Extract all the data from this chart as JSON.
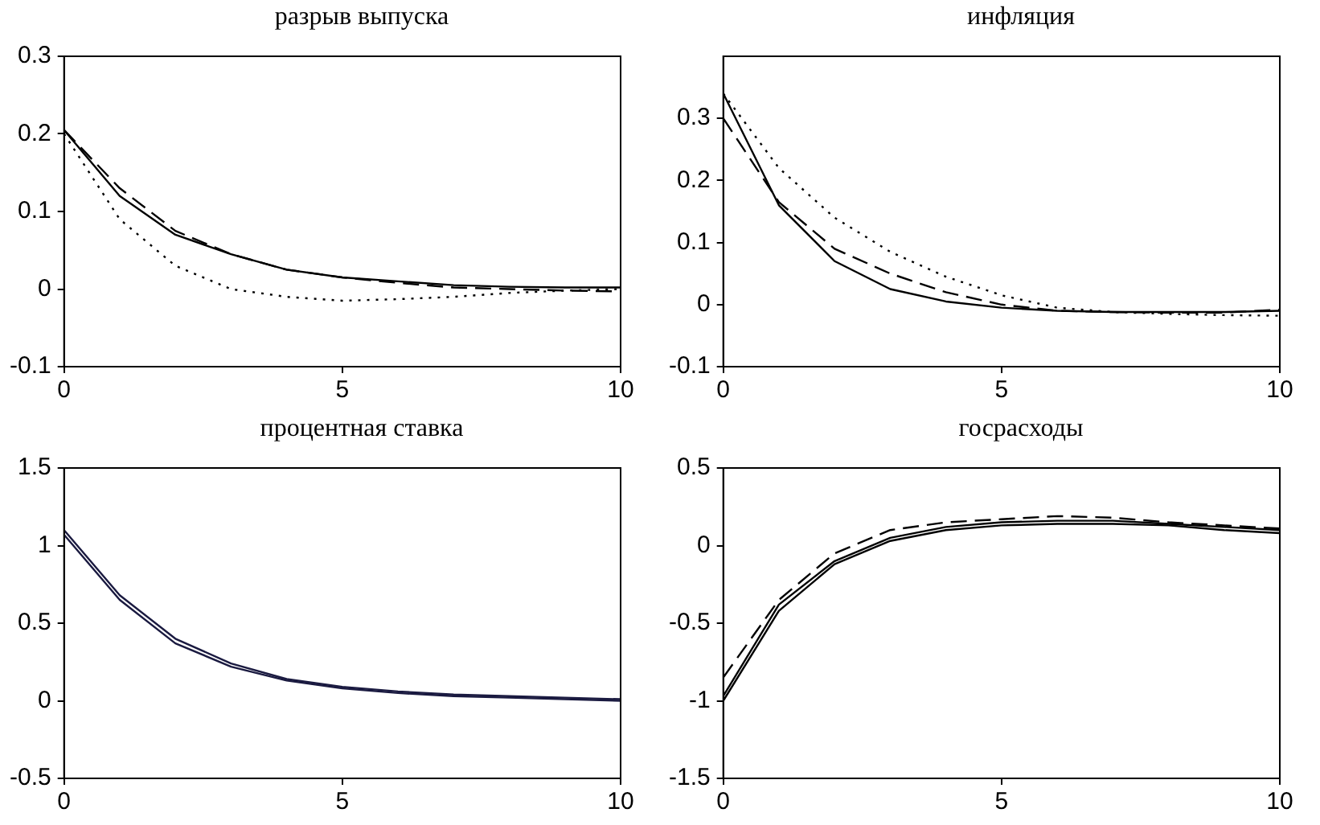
{
  "chart_data": [
    {
      "type": "line",
      "title": "разрыв выпуска",
      "x": [
        0,
        1,
        2,
        3,
        4,
        5,
        6,
        7,
        8,
        9,
        10
      ],
      "xlim": [
        0,
        10
      ],
      "xticks": [
        0,
        5,
        10
      ],
      "ylim": [
        -0.1,
        0.3
      ],
      "yticks": [
        -0.1,
        0,
        0.1,
        0.2,
        0.3
      ],
      "grid": false,
      "legend": false,
      "marker": "none",
      "series": [
        {
          "color": "#000000",
          "line_style": "solid",
          "values": [
            0.205,
            0.12,
            0.07,
            0.045,
            0.025,
            0.015,
            0.01,
            0.005,
            0.003,
            0.002,
            0.002
          ]
        },
        {
          "color": "#000000",
          "line_style": "dashed",
          "values": [
            0.205,
            0.13,
            0.075,
            0.045,
            0.025,
            0.015,
            0.008,
            0.002,
            0,
            -0.002,
            -0.003
          ]
        },
        {
          "color": "#000000",
          "line_style": "dotted",
          "values": [
            0.2,
            0.09,
            0.03,
            0,
            -0.01,
            -0.015,
            -0.013,
            -0.01,
            -0.005,
            -0.002,
            0
          ]
        }
      ]
    },
    {
      "type": "line",
      "title": "инфляция",
      "x": [
        0,
        1,
        2,
        3,
        4,
        5,
        6,
        7,
        8,
        9,
        10
      ],
      "xlim": [
        0,
        10
      ],
      "xticks": [
        0,
        5,
        10
      ],
      "ylim": [
        -0.1,
        0.4
      ],
      "yticks": [
        -0.1,
        0,
        0.1,
        0.2,
        0.3
      ],
      "grid": false,
      "legend": false,
      "marker": "none",
      "series": [
        {
          "color": "#000000",
          "line_style": "solid",
          "values": [
            0.34,
            0.16,
            0.07,
            0.025,
            0.005,
            -0.005,
            -0.01,
            -0.012,
            -0.012,
            -0.012,
            -0.01
          ]
        },
        {
          "color": "#000000",
          "line_style": "dashed",
          "values": [
            0.3,
            0.165,
            0.09,
            0.05,
            0.02,
            0,
            -0.01,
            -0.012,
            -0.013,
            -0.013,
            -0.008
          ]
        },
        {
          "color": "#000000",
          "line_style": "dotted",
          "values": [
            0.34,
            0.22,
            0.14,
            0.085,
            0.045,
            0.015,
            -0.005,
            -0.012,
            -0.015,
            -0.017,
            -0.018
          ]
        }
      ]
    },
    {
      "type": "line",
      "title": "процентная ставка",
      "x": [
        0,
        1,
        2,
        3,
        4,
        5,
        6,
        7,
        8,
        9,
        10
      ],
      "xlim": [
        0,
        10
      ],
      "xticks": [
        0,
        5,
        10
      ],
      "ylim": [
        -0.5,
        1.5
      ],
      "yticks": [
        -0.5,
        0,
        0.5,
        1,
        1.5
      ],
      "grid": false,
      "legend": false,
      "marker": "none",
      "series": [
        {
          "color": "#1a1a40",
          "line_style": "solid",
          "values": [
            1.1,
            0.68,
            0.4,
            0.24,
            0.14,
            0.09,
            0.06,
            0.04,
            0.03,
            0.02,
            0.01
          ]
        },
        {
          "color": "#1a1a40",
          "line_style": "solid",
          "values": [
            1.07,
            0.65,
            0.37,
            0.22,
            0.13,
            0.08,
            0.05,
            0.03,
            0.02,
            0.01,
            0
          ]
        }
      ]
    },
    {
      "type": "line",
      "title": "госрасходы",
      "x": [
        0,
        1,
        2,
        3,
        4,
        5,
        6,
        7,
        8,
        9,
        10
      ],
      "xlim": [
        0,
        10
      ],
      "xticks": [
        0,
        5,
        10
      ],
      "ylim": [
        -1.5,
        0.5
      ],
      "yticks": [
        -1.5,
        -1,
        -0.5,
        0,
        0.5
      ],
      "grid": false,
      "legend": false,
      "marker": "none",
      "series": [
        {
          "color": "#000000",
          "line_style": "solid",
          "values": [
            -1,
            -0.42,
            -0.12,
            0.03,
            0.1,
            0.13,
            0.14,
            0.14,
            0.13,
            0.1,
            0.08
          ]
        },
        {
          "color": "#000000",
          "line_style": "dashed",
          "values": [
            -0.85,
            -0.35,
            -0.05,
            0.1,
            0.15,
            0.17,
            0.19,
            0.18,
            0.15,
            0.13,
            0.11
          ]
        },
        {
          "color": "#000000",
          "line_style": "solid",
          "values": [
            -0.97,
            -0.38,
            -0.1,
            0.05,
            0.12,
            0.15,
            0.16,
            0.16,
            0.14,
            0.12,
            0.1
          ]
        }
      ]
    }
  ]
}
